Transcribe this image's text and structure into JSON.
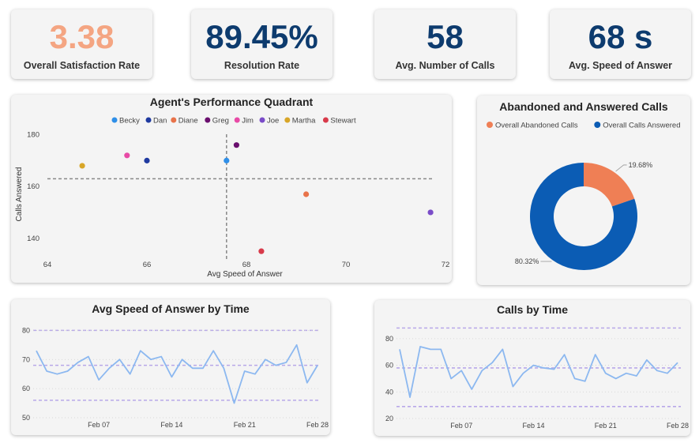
{
  "kpis": [
    {
      "value": "3.38",
      "label": "Overall Satisfaction Rate",
      "color": "#f4a582"
    },
    {
      "value": "89.45%",
      "label": "Resolution Rate",
      "color": "#0d3b6e"
    },
    {
      "value": "58",
      "label": "Avg. Number of Calls",
      "color": "#0d3b6e"
    },
    {
      "value": "68 s",
      "label": "Avg. Speed of Answer",
      "color": "#0d3b6e"
    }
  ],
  "chart_data": [
    {
      "type": "scatter",
      "title": "Agent's Performance Quadrant",
      "xlabel": "Avg Speed of Answer",
      "ylabel": "Calls Answered",
      "xlim": [
        64,
        72
      ],
      "ylim": [
        132,
        182
      ],
      "xticks": [
        64,
        66,
        68,
        70,
        72
      ],
      "yticks": [
        140,
        160,
        180
      ],
      "reference_lines": {
        "x": 67.6,
        "y": 163
      },
      "legend": "top",
      "series": [
        {
          "name": "Becky",
          "color": "#2f8fe8",
          "x": 67.6,
          "y": 170
        },
        {
          "name": "Dan",
          "color": "#1f3aa0",
          "x": 66.0,
          "y": 170
        },
        {
          "name": "Diane",
          "color": "#e8734a",
          "x": 69.2,
          "y": 157
        },
        {
          "name": "Greg",
          "color": "#6a0f6e",
          "x": 67.8,
          "y": 176
        },
        {
          "name": "Jim",
          "color": "#e84aa6",
          "x": 65.6,
          "y": 172
        },
        {
          "name": "Joe",
          "color": "#7a4cc8",
          "x": 71.7,
          "y": 150
        },
        {
          "name": "Martha",
          "color": "#d8a628",
          "x": 64.7,
          "y": 168
        },
        {
          "name": "Stewart",
          "color": "#d83a4a",
          "x": 68.3,
          "y": 135
        }
      ]
    },
    {
      "type": "pie",
      "title": "Abandoned and Answered Calls",
      "legend": "top",
      "slices": [
        {
          "name": "Overall Abandoned Calls",
          "value": 19.68,
          "label": "19.68%",
          "color": "#ef7f55"
        },
        {
          "name": "Overall Calls Answered",
          "value": 80.32,
          "label": "80.32%",
          "color": "#0b5cb4"
        }
      ]
    },
    {
      "type": "line",
      "title": "Avg Speed of Answer by Time",
      "ylim": [
        50,
        82
      ],
      "yticks": [
        50,
        60,
        70,
        80
      ],
      "xticks": [
        "Feb 07",
        "Feb 14",
        "Feb 21",
        "Feb 28"
      ],
      "xtick_days": [
        7,
        14,
        21,
        28
      ],
      "xlim_days": [
        1,
        28
      ],
      "reference_lines": [
        80,
        68,
        56
      ],
      "x_days": [
        1,
        2,
        3,
        4,
        5,
        6,
        7,
        8,
        9,
        10,
        11,
        12,
        13,
        14,
        15,
        16,
        17,
        18,
        19,
        20,
        21,
        22,
        23,
        24,
        25,
        26,
        27,
        28
      ],
      "values": [
        73,
        66,
        65,
        66,
        69,
        71,
        63,
        67,
        70,
        65,
        73,
        70,
        71,
        64,
        70,
        67,
        67,
        73,
        67,
        55,
        66,
        65,
        70,
        68,
        69,
        75,
        62,
        68
      ],
      "color": "#8cb8f0"
    },
    {
      "type": "line",
      "title": "Calls by Time",
      "ylim": [
        20,
        90
      ],
      "yticks": [
        20,
        40,
        60,
        80
      ],
      "xticks": [
        "Feb 07",
        "Feb 14",
        "Feb 21",
        "Feb 28"
      ],
      "xtick_days": [
        7,
        14,
        21,
        28
      ],
      "xlim_days": [
        1,
        28
      ],
      "reference_lines": [
        88,
        58,
        29
      ],
      "x_days": [
        1,
        2,
        3,
        4,
        5,
        6,
        7,
        8,
        9,
        10,
        11,
        12,
        13,
        14,
        15,
        16,
        17,
        18,
        19,
        20,
        21,
        22,
        23,
        24,
        25,
        26,
        27,
        28
      ],
      "values": [
        72,
        36,
        74,
        72,
        72,
        50,
        56,
        42,
        56,
        62,
        72,
        44,
        54,
        60,
        58,
        57,
        68,
        50,
        48,
        68,
        54,
        50,
        54,
        52,
        64,
        56,
        54,
        62
      ],
      "color": "#8cb8f0"
    }
  ]
}
